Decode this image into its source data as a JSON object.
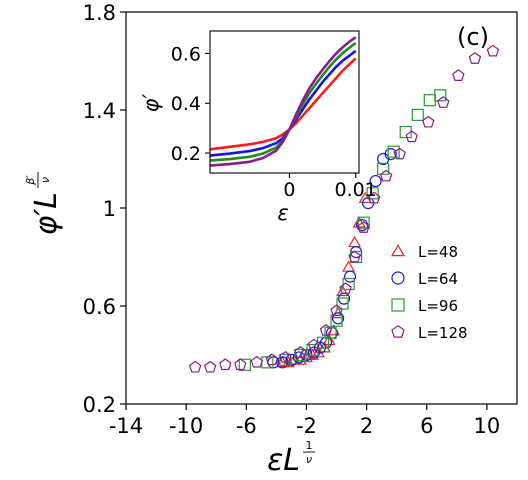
{
  "chart_data": [
    {
      "type": "scatter",
      "panel_label": "(c)",
      "xlim": [
        -14,
        12
      ],
      "ylim": [
        0.2,
        1.8
      ],
      "xticks": [
        -14,
        -10,
        -6,
        -2,
        2,
        6,
        10
      ],
      "xtick_labels": [
        "-14",
        "-10",
        "-6",
        "-2",
        "2",
        "6",
        "10"
      ],
      "yticks": [
        0.2,
        0.6,
        1.0,
        1.4,
        1.8
      ],
      "ytick_labels": [
        "0.2",
        "0.6",
        "1",
        "1.4",
        "1.8"
      ],
      "xlabel": {
        "base": "εL",
        "sup_num": "1",
        "sup_den": "ν"
      },
      "ylabel": {
        "base": "φ′L",
        "sup_num": "β′",
        "sup_den": "ν"
      },
      "legend_position": "lower-right",
      "series": [
        {
          "name": "L=48",
          "marker": "triangle",
          "color": "#e8262a",
          "x": [
            -3.6,
            -3.2,
            -2.8,
            -2.4,
            -2.0,
            -1.6,
            -1.2,
            -0.8,
            -0.5,
            -0.2,
            0.1,
            0.4,
            0.8,
            1.2,
            1.5,
            1.9
          ],
          "y": [
            0.37,
            0.37,
            0.38,
            0.38,
            0.39,
            0.4,
            0.41,
            0.43,
            0.46,
            0.5,
            0.57,
            0.66,
            0.76,
            0.86,
            0.94,
            1.04
          ]
        },
        {
          "name": "L=64",
          "marker": "circle",
          "color": "#1a1ae0",
          "x": [
            -4.2,
            -3.6,
            -3.0,
            -2.5,
            -2.0,
            -1.5,
            -1.1,
            -0.7,
            -0.3,
            0.1,
            0.5,
            0.9,
            1.3,
            1.7,
            2.1,
            2.6,
            3.1,
            3.6
          ],
          "y": [
            0.37,
            0.37,
            0.38,
            0.39,
            0.4,
            0.41,
            0.43,
            0.45,
            0.49,
            0.55,
            0.63,
            0.72,
            0.82,
            0.93,
            1.02,
            1.11,
            1.2,
            1.22
          ]
        },
        {
          "name": "L=96",
          "marker": "square",
          "color": "#2a9a2a",
          "x": [
            -6.1,
            -4.6,
            -3.4,
            -2.4,
            -1.6,
            -0.9,
            -0.4,
            0.0,
            0.4,
            0.8,
            1.3,
            1.8,
            2.4,
            3.1,
            3.8,
            4.6,
            5.4,
            6.2,
            6.9
          ],
          "y": [
            0.36,
            0.37,
            0.38,
            0.4,
            0.42,
            0.45,
            0.49,
            0.54,
            0.61,
            0.69,
            0.8,
            0.94,
            1.06,
            1.16,
            1.23,
            1.31,
            1.38,
            1.44,
            1.46
          ]
        },
        {
          "name": "L=128",
          "marker": "pentagon",
          "color": "#8b1a8b",
          "x": [
            -9.4,
            -8.4,
            -7.4,
            -6.4,
            -5.3,
            -4.3,
            -3.4,
            -2.4,
            -1.5,
            -0.7,
            0.0,
            0.6,
            1.2,
            1.8,
            2.5,
            3.3,
            4.2,
            5.0,
            6.1,
            7.1,
            8.1,
            9.2,
            10.4
          ],
          "y": [
            0.35,
            0.35,
            0.36,
            0.36,
            0.37,
            0.38,
            0.39,
            0.41,
            0.44,
            0.5,
            0.58,
            0.67,
            0.8,
            0.92,
            1.04,
            1.13,
            1.22,
            1.29,
            1.35,
            1.43,
            1.54,
            1.61,
            1.64
          ]
        }
      ]
    },
    {
      "type": "line",
      "role": "inset",
      "xlim": [
        -0.012,
        0.0105
      ],
      "ylim": [
        0.12,
        0.69
      ],
      "xticks": [
        0,
        0.01
      ],
      "xtick_labels": [
        "0",
        "0.01"
      ],
      "yticks": [
        0.2,
        0.4,
        0.6
      ],
      "ytick_labels": [
        "0.2",
        "0.4",
        "0.6"
      ],
      "xlabel": "ε",
      "ylabel": "φ′",
      "series": [
        {
          "color": "#ff1a1a",
          "x": [
            -0.012,
            -0.009,
            -0.006,
            -0.004,
            -0.002,
            -0.001,
            0.0,
            0.001,
            0.002,
            0.003,
            0.004,
            0.005,
            0.006,
            0.007,
            0.008,
            0.009,
            0.01
          ],
          "y": [
            0.215,
            0.225,
            0.235,
            0.245,
            0.26,
            0.275,
            0.295,
            0.32,
            0.35,
            0.38,
            0.41,
            0.44,
            0.47,
            0.5,
            0.53,
            0.555,
            0.58
          ]
        },
        {
          "color": "#1414e6",
          "x": [
            -0.012,
            -0.009,
            -0.006,
            -0.004,
            -0.002,
            -0.001,
            0.0,
            0.001,
            0.002,
            0.003,
            0.004,
            0.005,
            0.006,
            0.007,
            0.008,
            0.009,
            0.01
          ],
          "y": [
            0.19,
            0.198,
            0.208,
            0.22,
            0.24,
            0.26,
            0.295,
            0.335,
            0.375,
            0.415,
            0.45,
            0.485,
            0.515,
            0.545,
            0.57,
            0.59,
            0.61
          ]
        },
        {
          "color": "#1e8c1e",
          "x": [
            -0.012,
            -0.009,
            -0.006,
            -0.004,
            -0.002,
            -0.001,
            0.0,
            0.001,
            0.002,
            0.003,
            0.004,
            0.005,
            0.006,
            0.007,
            0.008,
            0.009,
            0.01
          ],
          "y": [
            0.17,
            0.176,
            0.185,
            0.198,
            0.222,
            0.25,
            0.295,
            0.345,
            0.395,
            0.44,
            0.478,
            0.512,
            0.545,
            0.575,
            0.6,
            0.622,
            0.642
          ]
        },
        {
          "color": "#8b1a8b",
          "x": [
            -0.012,
            -0.009,
            -0.006,
            -0.004,
            -0.002,
            -0.001,
            0.0,
            0.001,
            0.002,
            0.003,
            0.004,
            0.005,
            0.006,
            0.007,
            0.008,
            0.009,
            0.01
          ],
          "y": [
            0.15,
            0.156,
            0.165,
            0.18,
            0.21,
            0.245,
            0.295,
            0.355,
            0.41,
            0.46,
            0.5,
            0.535,
            0.568,
            0.598,
            0.624,
            0.646,
            0.665
          ]
        }
      ]
    }
  ]
}
